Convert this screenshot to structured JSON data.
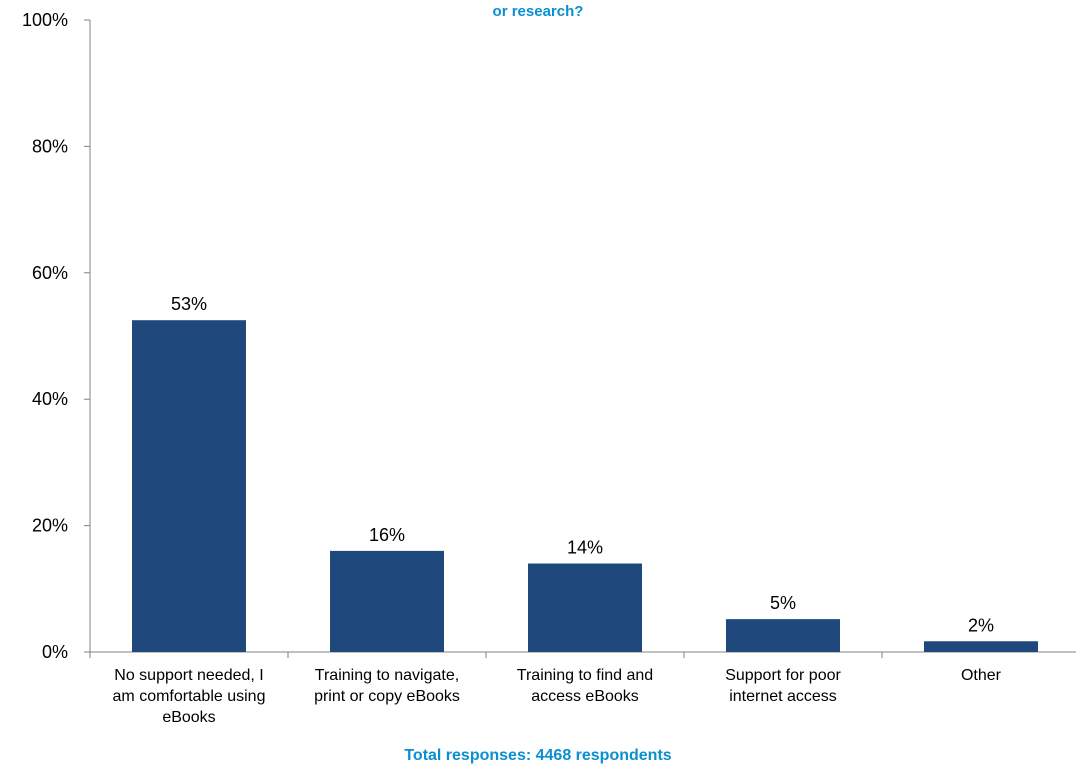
{
  "chart_data": {
    "type": "bar",
    "title": "or research?",
    "categories": [
      [
        "No support needed, I",
        "am comfortable using",
        "eBooks"
      ],
      [
        "Training to navigate,",
        "print or copy eBooks"
      ],
      [
        "Training to find and",
        "access eBooks"
      ],
      [
        "Support for poor",
        "internet access"
      ],
      [
        "Other"
      ]
    ],
    "values": [
      52.5,
      16,
      14,
      5.2,
      1.7
    ],
    "data_labels": [
      "53%",
      "16%",
      "14%",
      "5%",
      "2%"
    ],
    "ylim": [
      0,
      100
    ],
    "yticks": [
      0,
      20,
      40,
      60,
      80,
      100
    ],
    "ytick_labels": [
      "0%",
      "20%",
      "40%",
      "60%",
      "80%",
      "100%"
    ],
    "grid": false,
    "footer": "Total responses: 4468 respondents"
  },
  "colors": {
    "bar": "#1f497d",
    "title": "#0b8fd0",
    "footer": "#0b8fd0",
    "axis": "#808080"
  }
}
